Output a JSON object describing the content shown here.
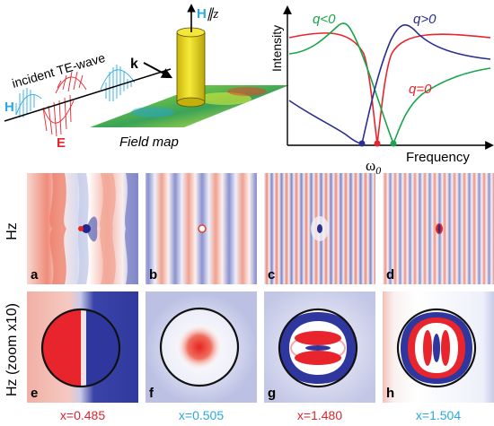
{
  "colors": {
    "red": "#e8242c",
    "blue": "#2b2f8f",
    "green": "#1aa54b",
    "cyan": "#29a9e1",
    "field_red": "#e3413c",
    "field_blue": "#3a44a8",
    "cylinder": "#f2e21a",
    "label_red": "#d8262e",
    "label_cyan": "#2aa8dc"
  },
  "schematic": {
    "incident_label": "incident TE-wave",
    "h_label": "H",
    "e_label": "E",
    "k_label": "k",
    "hz_axis_h": "H",
    "hz_axis_rest": "∥z",
    "field_map_label": "Field map"
  },
  "spectrum": {
    "y_label": "Intensity",
    "x_label": "Frequency",
    "omega_label": "ω",
    "omega_sub": "0",
    "curves": [
      {
        "label": "q<0",
        "color_key": "green"
      },
      {
        "label": "q>0",
        "color_key": "blue"
      },
      {
        "label": "q=0",
        "color_key": "red"
      }
    ]
  },
  "row_labels": {
    "top": "Hz",
    "bottom": "Hz (zoom x10)"
  },
  "panels": {
    "top": [
      "a",
      "b",
      "c",
      "d"
    ],
    "bottom": [
      "e",
      "f",
      "g",
      "h"
    ]
  },
  "x_values": [
    {
      "text": "x=0.485",
      "color_key": "label_red"
    },
    {
      "text": "x=0.505",
      "color_key": "label_cyan"
    },
    {
      "text": "x=1.480",
      "color_key": "label_red"
    },
    {
      "text": "x=1.504",
      "color_key": "label_cyan"
    }
  ]
}
